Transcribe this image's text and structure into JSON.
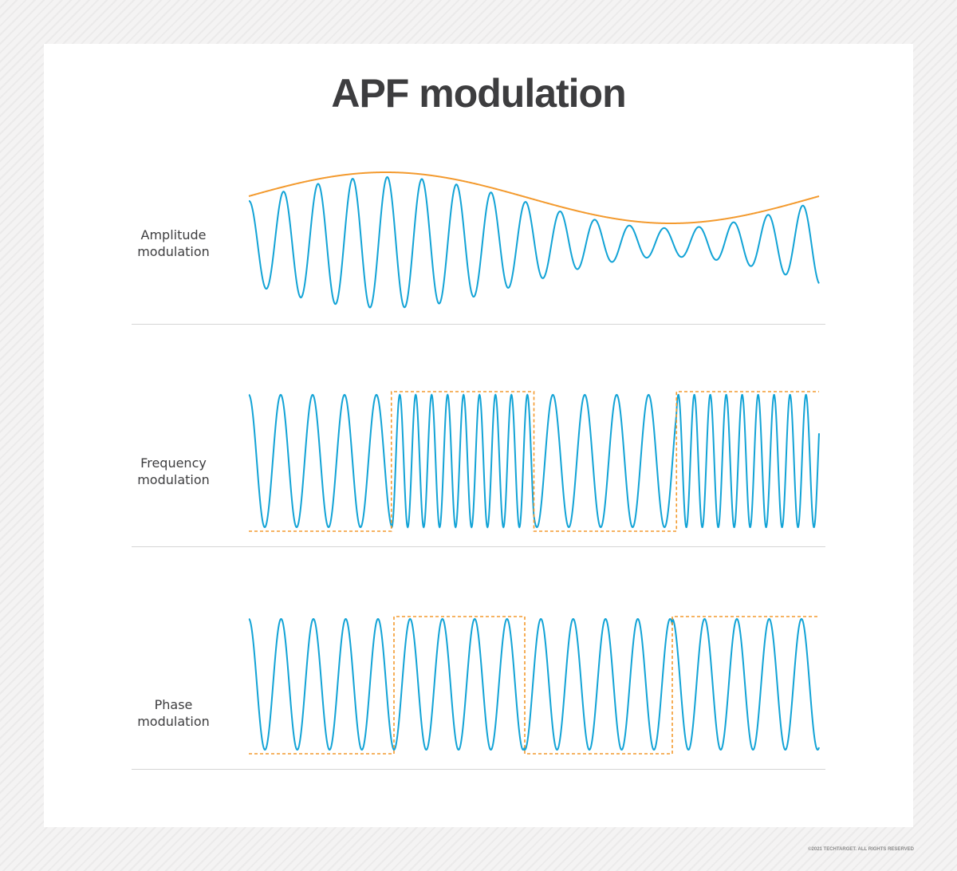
{
  "title": "APF modulation",
  "colors": {
    "carrier": "#12a3d6",
    "modulating_signal": "#f39a2e",
    "title": "#3d3d3f",
    "divider": "#d5d5d5"
  },
  "rows": [
    {
      "label_line1": "Amplitude",
      "label_line2": "modulation",
      "signal": "smooth envelope (solid)"
    },
    {
      "label_line1": "Frequency",
      "label_line2": "modulation",
      "signal": "square wave (dashed)",
      "levels": [
        0,
        1,
        0,
        1
      ]
    },
    {
      "label_line1": "Phase",
      "label_line2": "modulation",
      "signal": "square wave (dashed)",
      "levels": [
        0,
        1,
        0,
        1
      ]
    }
  ],
  "copyright": "©2021 TECHTARGET. ALL RIGHTS RESERVED"
}
